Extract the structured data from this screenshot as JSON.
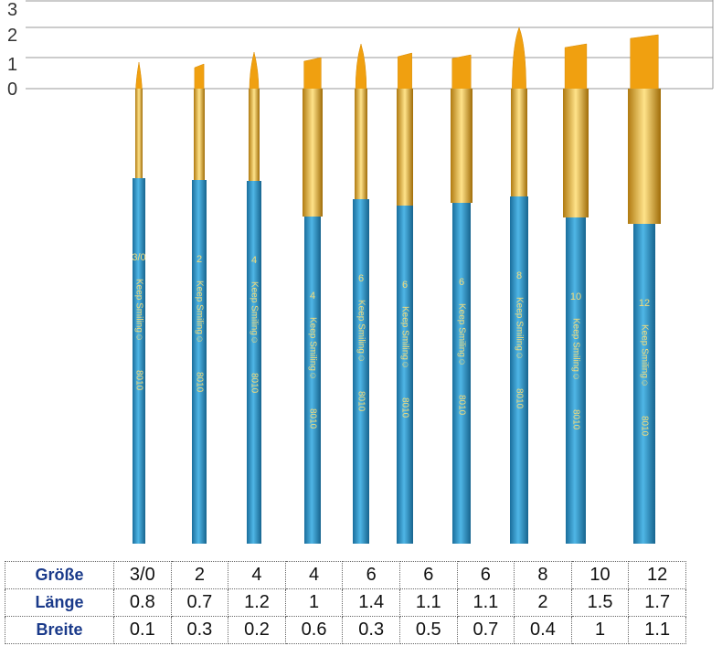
{
  "scale": {
    "labels": [
      "3",
      "2",
      "1",
      "0"
    ]
  },
  "brushes": [
    {
      "size": "3/0",
      "slogan": "Keep Smiling☺",
      "code": "8010"
    },
    {
      "size": "2",
      "slogan": "Keep Smiling☺",
      "code": "8010"
    },
    {
      "size": "4",
      "slogan": "Keep Smiling☺",
      "code": "8010"
    },
    {
      "size": "4",
      "slogan": "Keep Smiling☺",
      "code": "8010"
    },
    {
      "size": "6",
      "slogan": "Keep Smiling☺",
      "code": "8010"
    },
    {
      "size": "6",
      "slogan": "Keep Smiling☺",
      "code": "8010"
    },
    {
      "size": "6",
      "slogan": "Keep Smiling☺",
      "code": "8010"
    },
    {
      "size": "8",
      "slogan": "Keep Smiling☺",
      "code": "8010"
    },
    {
      "size": "10",
      "slogan": "Keep Smiling☺",
      "code": "8010"
    },
    {
      "size": "12",
      "slogan": "Keep Smiling☺",
      "code": "8010"
    }
  ],
  "table": {
    "rows": [
      [
        "Größe",
        "3/0",
        "2",
        "4",
        "4",
        "6",
        "6",
        "6",
        "8",
        "10",
        "12"
      ],
      [
        "Länge",
        "0.8",
        "0.7",
        "1.2",
        "1",
        "1.4",
        "1.1",
        "1.1",
        "2",
        "1.5",
        "1.7"
      ],
      [
        "Breite",
        "0.1",
        "0.3",
        "0.2",
        "0.6",
        "0.3",
        "0.5",
        "0.7",
        "0.4",
        "1",
        "1.1"
      ]
    ]
  }
}
